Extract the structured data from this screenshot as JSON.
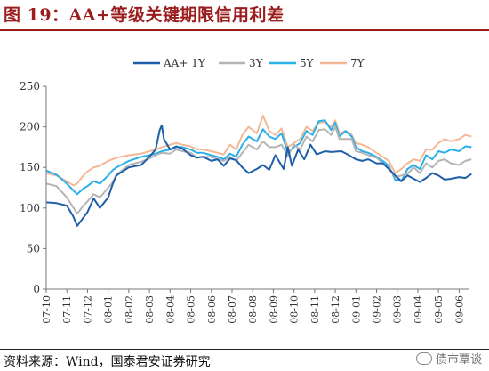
{
  "figure": {
    "title": "图 19：AA+等级关键期限信用利差",
    "source": "资料来源：Wind，国泰君安证券研究",
    "watermark": "债市覃谈"
  },
  "chart_data": {
    "type": "line",
    "title": "",
    "xlabel": "",
    "ylabel": "",
    "ylim": [
      0,
      250
    ],
    "yticks": [
      0,
      50,
      100,
      150,
      200,
      250
    ],
    "x_ticks": [
      "07-10",
      "07-11",
      "07-12",
      "08-01",
      "08-02",
      "08-03",
      "08-04",
      "08-05",
      "08-06",
      "08-07",
      "08-08",
      "08-09",
      "08-10",
      "08-11",
      "08-12",
      "09-01",
      "09-02",
      "09-03",
      "09-04",
      "09-05",
      "09-06"
    ],
    "grid": false,
    "legend_position": "top",
    "series": [
      {
        "name": "AA+ 1Y",
        "color": "#1f5ea8",
        "points": [
          [
            0,
            107
          ],
          [
            0.5,
            106
          ],
          [
            1,
            103
          ],
          [
            1.3,
            90
          ],
          [
            1.5,
            78
          ],
          [
            1.8,
            88
          ],
          [
            2,
            95
          ],
          [
            2.3,
            112
          ],
          [
            2.6,
            100
          ],
          [
            3,
            113
          ],
          [
            3.2,
            128
          ],
          [
            3.4,
            140
          ],
          [
            4,
            150
          ],
          [
            4.6,
            153
          ],
          [
            5,
            163
          ],
          [
            5.3,
            172
          ],
          [
            5.5,
            196
          ],
          [
            5.6,
            202
          ],
          [
            5.7,
            185
          ],
          [
            6,
            172
          ],
          [
            6.3,
            176
          ],
          [
            6.6,
            173
          ],
          [
            7,
            165
          ],
          [
            7.3,
            162
          ],
          [
            7.6,
            163
          ],
          [
            8,
            158
          ],
          [
            8.3,
            160
          ],
          [
            8.6,
            152
          ],
          [
            8.9,
            161
          ],
          [
            9.2,
            159
          ],
          [
            9.5,
            150
          ],
          [
            9.8,
            143
          ],
          [
            10.2,
            148
          ],
          [
            10.5,
            153
          ],
          [
            10.8,
            147
          ],
          [
            11.1,
            165
          ],
          [
            11.5,
            148
          ],
          [
            11.7,
            175
          ],
          [
            11.9,
            152
          ],
          [
            12.2,
            172
          ],
          [
            12.5,
            160
          ],
          [
            12.8,
            178
          ],
          [
            13.1,
            166
          ],
          [
            13.5,
            170
          ],
          [
            13.8,
            169
          ],
          [
            14.3,
            170
          ],
          [
            14.6,
            166
          ],
          [
            15,
            160
          ],
          [
            15.3,
            158
          ],
          [
            15.6,
            160
          ],
          [
            16,
            155
          ],
          [
            16.3,
            155
          ],
          [
            16.6,
            148
          ],
          [
            16.9,
            140
          ],
          [
            17.2,
            133
          ],
          [
            17.5,
            140
          ],
          [
            17.8,
            136
          ],
          [
            18.1,
            132
          ],
          [
            18.4,
            137
          ],
          [
            18.7,
            143
          ],
          [
            19,
            140
          ],
          [
            19.3,
            135
          ],
          [
            19.6,
            136
          ],
          [
            20,
            138
          ],
          [
            20.3,
            137
          ],
          [
            20.6,
            142
          ]
        ]
      },
      {
        "name": "3Y",
        "color": "#b5b5b5",
        "points": [
          [
            0,
            130
          ],
          [
            0.5,
            127
          ],
          [
            1,
            113
          ],
          [
            1.3,
            101
          ],
          [
            1.5,
            93
          ],
          [
            1.8,
            103
          ],
          [
            2,
            108
          ],
          [
            2.3,
            117
          ],
          [
            2.6,
            113
          ],
          [
            3,
            125
          ],
          [
            3.2,
            131
          ],
          [
            3.4,
            141
          ],
          [
            4,
            153
          ],
          [
            4.6,
            157
          ],
          [
            5,
            161
          ],
          [
            5.3,
            165
          ],
          [
            5.6,
            168
          ],
          [
            6,
            167
          ],
          [
            6.3,
            172
          ],
          [
            6.6,
            170
          ],
          [
            7,
            168
          ],
          [
            7.3,
            162
          ],
          [
            7.6,
            163
          ],
          [
            8,
            163
          ],
          [
            8.3,
            160
          ],
          [
            8.6,
            158
          ],
          [
            8.9,
            163
          ],
          [
            9.2,
            158
          ],
          [
            9.5,
            168
          ],
          [
            9.8,
            178
          ],
          [
            10.2,
            172
          ],
          [
            10.5,
            182
          ],
          [
            10.8,
            175
          ],
          [
            11.1,
            175
          ],
          [
            11.4,
            178
          ],
          [
            11.7,
            164
          ],
          [
            12,
            178
          ],
          [
            12.3,
            172
          ],
          [
            12.6,
            188
          ],
          [
            12.9,
            182
          ],
          [
            13.2,
            196
          ],
          [
            13.5,
            197
          ],
          [
            13.8,
            190
          ],
          [
            14,
            200
          ],
          [
            14.2,
            185
          ],
          [
            14.5,
            185
          ],
          [
            14.8,
            185
          ],
          [
            15,
            170
          ],
          [
            15.3,
            168
          ],
          [
            15.6,
            165
          ],
          [
            16,
            162
          ],
          [
            16.3,
            155
          ],
          [
            16.6,
            150
          ],
          [
            16.9,
            138
          ],
          [
            17.2,
            140
          ],
          [
            17.5,
            142
          ],
          [
            17.8,
            150
          ],
          [
            18.1,
            143
          ],
          [
            18.4,
            155
          ],
          [
            18.7,
            150
          ],
          [
            19,
            158
          ],
          [
            19.3,
            160
          ],
          [
            19.6,
            155
          ],
          [
            20,
            153
          ],
          [
            20.3,
            158
          ],
          [
            20.6,
            160
          ]
        ]
      },
      {
        "name": "5Y",
        "color": "#2ab0e8",
        "points": [
          [
            0,
            146
          ],
          [
            0.5,
            141
          ],
          [
            1,
            130
          ],
          [
            1.3,
            122
          ],
          [
            1.5,
            117
          ],
          [
            1.8,
            124
          ],
          [
            2,
            127
          ],
          [
            2.3,
            133
          ],
          [
            2.6,
            130
          ],
          [
            3,
            140
          ],
          [
            3.2,
            146
          ],
          [
            3.4,
            150
          ],
          [
            4,
            158
          ],
          [
            4.6,
            163
          ],
          [
            5,
            165
          ],
          [
            5.3,
            167
          ],
          [
            5.6,
            170
          ],
          [
            6,
            172
          ],
          [
            6.3,
            175
          ],
          [
            6.6,
            175
          ],
          [
            7,
            172
          ],
          [
            7.3,
            168
          ],
          [
            7.6,
            168
          ],
          [
            8,
            165
          ],
          [
            8.3,
            163
          ],
          [
            8.6,
            160
          ],
          [
            8.9,
            167
          ],
          [
            9.2,
            163
          ],
          [
            9.5,
            178
          ],
          [
            9.8,
            188
          ],
          [
            10.2,
            182
          ],
          [
            10.5,
            197
          ],
          [
            10.8,
            188
          ],
          [
            11.1,
            185
          ],
          [
            11.4,
            192
          ],
          [
            11.7,
            168
          ],
          [
            12,
            175
          ],
          [
            12.3,
            180
          ],
          [
            12.6,
            195
          ],
          [
            12.9,
            190
          ],
          [
            13.2,
            207
          ],
          [
            13.5,
            208
          ],
          [
            13.8,
            196
          ],
          [
            14,
            205
          ],
          [
            14.2,
            188
          ],
          [
            14.5,
            195
          ],
          [
            14.8,
            188
          ],
          [
            15,
            175
          ],
          [
            15.3,
            170
          ],
          [
            15.6,
            168
          ],
          [
            16,
            163
          ],
          [
            16.3,
            158
          ],
          [
            16.6,
            152
          ],
          [
            16.9,
            135
          ],
          [
            17.2,
            133
          ],
          [
            17.5,
            148
          ],
          [
            17.8,
            153
          ],
          [
            18.1,
            148
          ],
          [
            18.4,
            165
          ],
          [
            18.7,
            160
          ],
          [
            19,
            170
          ],
          [
            19.3,
            168
          ],
          [
            19.6,
            172
          ],
          [
            20,
            170
          ],
          [
            20.3,
            176
          ],
          [
            20.6,
            175
          ]
        ]
      },
      {
        "name": "7Y",
        "color": "#f5b896",
        "points": [
          [
            0,
            143
          ],
          [
            0.5,
            140
          ],
          [
            1,
            133
          ],
          [
            1.3,
            128
          ],
          [
            1.5,
            130
          ],
          [
            1.8,
            140
          ],
          [
            2,
            145
          ],
          [
            2.3,
            150
          ],
          [
            2.6,
            152
          ],
          [
            3,
            158
          ],
          [
            3.2,
            160
          ],
          [
            3.4,
            162
          ],
          [
            4,
            165
          ],
          [
            4.6,
            167
          ],
          [
            5,
            170
          ],
          [
            5.3,
            172
          ],
          [
            5.6,
            175
          ],
          [
            6,
            178
          ],
          [
            6.3,
            180
          ],
          [
            6.6,
            178
          ],
          [
            7,
            176
          ],
          [
            7.3,
            172
          ],
          [
            7.6,
            172
          ],
          [
            8,
            170
          ],
          [
            8.3,
            168
          ],
          [
            8.6,
            166
          ],
          [
            8.9,
            178
          ],
          [
            9.2,
            172
          ],
          [
            9.5,
            190
          ],
          [
            9.8,
            200
          ],
          [
            10.2,
            192
          ],
          [
            10.5,
            214
          ],
          [
            10.8,
            195
          ],
          [
            11.1,
            190
          ],
          [
            11.4,
            198
          ],
          [
            11.7,
            175
          ],
          [
            12,
            180
          ],
          [
            12.3,
            185
          ],
          [
            12.6,
            200
          ],
          [
            12.9,
            195
          ],
          [
            13.2,
            205
          ],
          [
            13.5,
            206
          ],
          [
            13.8,
            200
          ],
          [
            14,
            208
          ],
          [
            14.2,
            192
          ],
          [
            14.5,
            195
          ],
          [
            14.8,
            190
          ],
          [
            15,
            180
          ],
          [
            15.3,
            178
          ],
          [
            15.6,
            175
          ],
          [
            16,
            168
          ],
          [
            16.3,
            163
          ],
          [
            16.6,
            158
          ],
          [
            16.9,
            143
          ],
          [
            17.2,
            148
          ],
          [
            17.5,
            155
          ],
          [
            17.8,
            160
          ],
          [
            18.1,
            158
          ],
          [
            18.4,
            172
          ],
          [
            18.7,
            172
          ],
          [
            19,
            180
          ],
          [
            19.3,
            185
          ],
          [
            19.6,
            182
          ],
          [
            20,
            185
          ],
          [
            20.3,
            190
          ],
          [
            20.6,
            188
          ]
        ]
      }
    ]
  }
}
